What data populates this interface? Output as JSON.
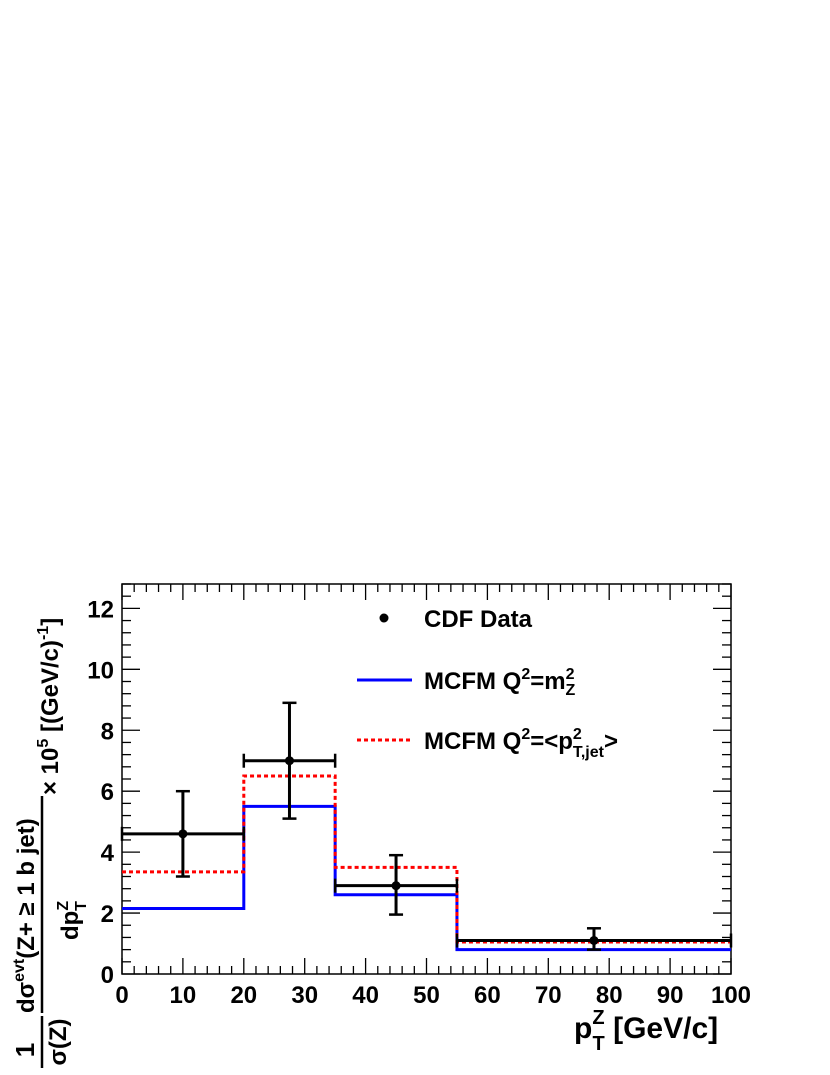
{
  "chart_data": {
    "type": "line",
    "xlabel": "p_T^Z [GeV/c]",
    "ylabel": "1/σ(Z) dσ^evt(Z+ ≥ 1 b jet)/dp_T^Z × 10^5 [(GeV/c)^-1]",
    "xlim": [
      0,
      100
    ],
    "ylim": [
      0,
      12.8
    ],
    "xticks": [
      0,
      10,
      20,
      30,
      40,
      50,
      60,
      70,
      80,
      90,
      100
    ],
    "yticks": [
      0,
      2,
      4,
      6,
      8,
      10,
      12
    ],
    "bin_edges": [
      0,
      20,
      35,
      55,
      100
    ],
    "data": {
      "name": "CDF Data",
      "color": "#000000",
      "points": [
        {
          "x": 10,
          "y": 4.6,
          "xlo": 0,
          "xhi": 20,
          "ylo": 3.2,
          "yhi": 6.0
        },
        {
          "x": 27.5,
          "y": 7.0,
          "xlo": 20,
          "xhi": 35,
          "ylo": 5.1,
          "yhi": 8.9
        },
        {
          "x": 45,
          "y": 2.9,
          "xlo": 35,
          "xhi": 55,
          "ylo": 1.95,
          "yhi": 3.9
        },
        {
          "x": 77.5,
          "y": 1.1,
          "xlo": 55,
          "xhi": 100,
          "ylo": 0.8,
          "yhi": 1.5
        }
      ]
    },
    "series": [
      {
        "name": "MCFM  Q²=m²_Z",
        "color": "#0000ff",
        "style": "solid",
        "values": [
          2.15,
          5.5,
          2.6,
          0.8
        ]
      },
      {
        "name": "MCFM  Q²=<p²_T,jet>",
        "color": "#ff0000",
        "style": "dotted",
        "values": [
          3.35,
          6.5,
          3.5,
          1.05
        ]
      }
    ],
    "legend": {
      "placement": "top-right",
      "entries": [
        {
          "text": "CDF Data"
        },
        {
          "text": "MCFM  Q",
          "sup": "2",
          "rest": "=m",
          "sup2": "2",
          "sub2": "Z"
        },
        {
          "text": "MCFM  Q",
          "sup": "2",
          "rest": "=<p",
          "sup2": "2",
          "sub2": "T,jet",
          "tail": ">"
        }
      ]
    },
    "x_axis_title": {
      "main": "p",
      "sub": "T",
      "sup": "Z",
      "rest": " [GeV/c]"
    },
    "y_axis_title": {
      "frac1_num": "1",
      "frac1_den": "σ(Z)",
      "frac2_num_a": "dσ",
      "frac2_num_sup": "evt",
      "frac2_num_b": "(Z+ ≥ 1 b jet)",
      "frac2_den_a": "dp",
      "frac2_den_sub": "T",
      "frac2_den_sup": "Z",
      "times": "× 10",
      "times_sup": "5",
      "unit": " [(GeV/c)",
      "unit_sup": "-1",
      "unit_end": "]"
    }
  }
}
